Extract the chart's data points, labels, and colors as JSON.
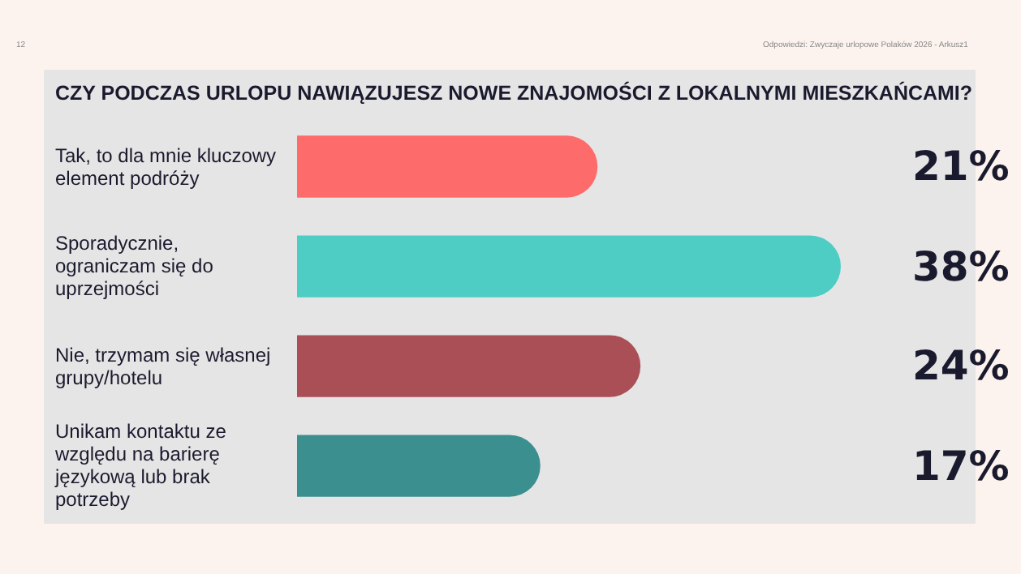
{
  "chart_data": {
    "type": "bar",
    "orientation": "horizontal",
    "title": "CZY PODCZAS URLOPU NAWIĄZUJESZ NOWE ZNAJOMOŚCI Z LOKALNYMI MIESZKAŃCAMI?",
    "categories": [
      "Tak, to dla mnie kluczowy element podróży",
      "Sporadycznie, ograniczam się do uprzejmości",
      "Nie, trzymam się własnej grupy/hotelu",
      "Unikam kontaktu ze względu na barierę językową lub brak potrzeby"
    ],
    "values": [
      21,
      38,
      24,
      17
    ],
    "value_labels": [
      "21%",
      "38%",
      "24%",
      "17%"
    ],
    "colors": [
      "#fe6b6b",
      "#4ecdc4",
      "#a94f55",
      "#3b8f8f"
    ],
    "xlim": [
      0,
      38
    ],
    "annotations": [
      "12",
      "Odpowiedzi: Zwyczaje urlopowe Polaków 2026 - Arkusz1"
    ]
  }
}
